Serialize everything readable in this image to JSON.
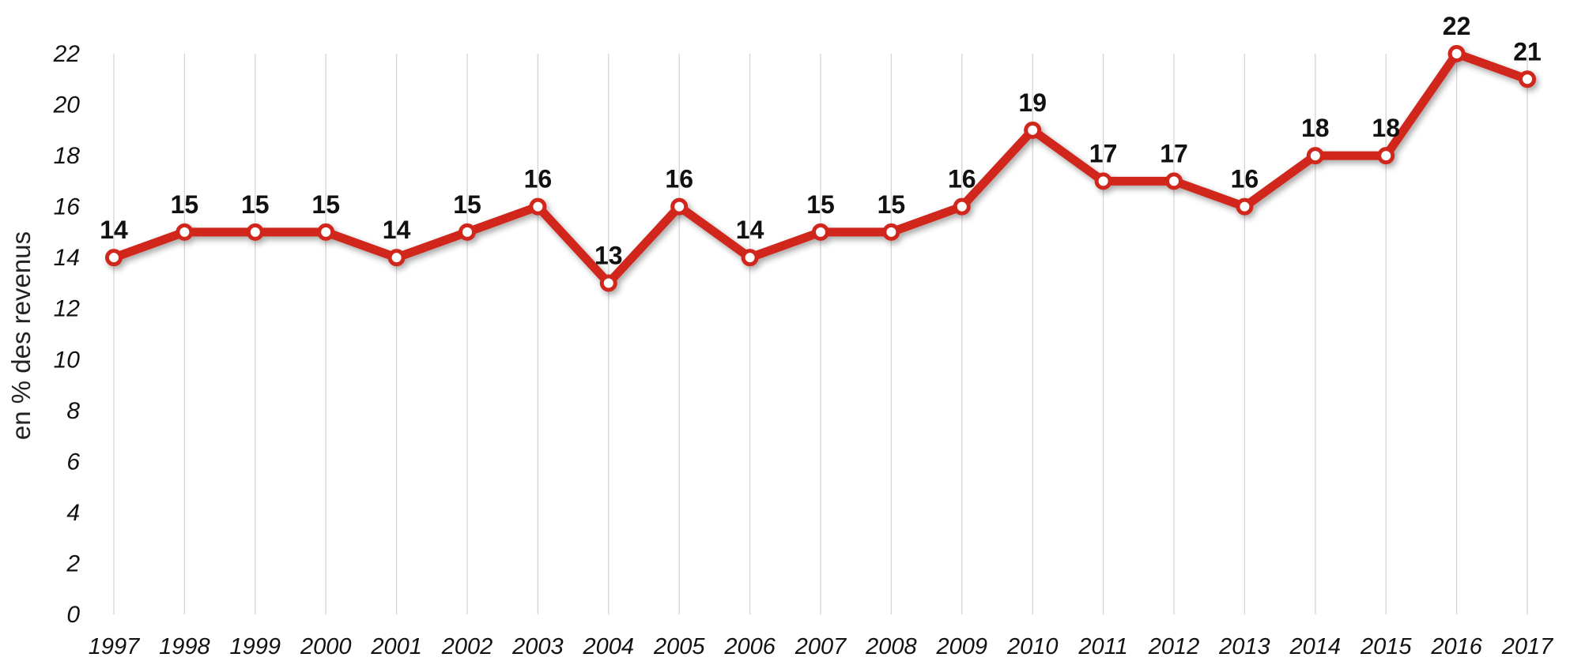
{
  "chart_data": {
    "type": "line",
    "ylabel": "en % des revenus",
    "xlabel": "",
    "ylim": [
      0,
      22
    ],
    "yticks": [
      "0",
      "2",
      "4",
      "6",
      "8",
      "10",
      "12",
      "14",
      "16",
      "18",
      "20",
      "22"
    ],
    "categories": [
      "1997",
      "1998",
      "1999",
      "2000",
      "2001",
      "2002",
      "2003",
      "2004",
      "2005",
      "2006",
      "2007",
      "2008",
      "2009",
      "2010",
      "2011",
      "2012",
      "2013",
      "2014",
      "2015",
      "2016",
      "2017"
    ],
    "series": [
      {
        "values": [
          14,
          15,
          15,
          15,
          14,
          15,
          16,
          13,
          16,
          14,
          15,
          15,
          16,
          19,
          17,
          17,
          16,
          18,
          18,
          22,
          21
        ],
        "color": "#d0271a"
      }
    ],
    "data_labels": true,
    "grid": "vertical",
    "legend": "none"
  }
}
